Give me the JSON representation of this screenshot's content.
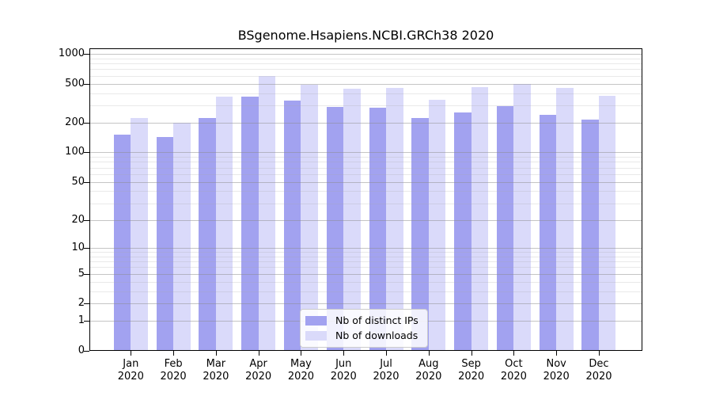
{
  "chart_data": {
    "type": "bar",
    "title": "BSgenome.Hsapiens.NCBI.GRCh38 2020",
    "categories": [
      "Jan",
      "Feb",
      "Mar",
      "Apr",
      "May",
      "Jun",
      "Jul",
      "Aug",
      "Sep",
      "Oct",
      "Nov",
      "Dec"
    ],
    "category_year": "2020",
    "series": [
      {
        "name": "Nb of distinct IPs",
        "color": "#a2a2f0",
        "values": [
          150,
          140,
          218,
          362,
          330,
          285,
          280,
          220,
          250,
          292,
          237,
          212
        ]
      },
      {
        "name": "Nb of downloads",
        "color": "#dadafa",
        "values": [
          220,
          198,
          363,
          580,
          480,
          433,
          447,
          338,
          455,
          483,
          446,
          366
        ]
      }
    ],
    "y_axis": {
      "scale": "log1p",
      "major_ticks": [
        0,
        1,
        2,
        5,
        10,
        20,
        50,
        100,
        200,
        500,
        1000
      ],
      "minor_ticks": [
        3,
        4,
        6,
        7,
        8,
        9,
        30,
        40,
        60,
        70,
        80,
        90,
        300,
        400,
        600,
        700,
        800,
        900
      ],
      "range_top": 1140
    },
    "xlabel": "",
    "ylabel": "",
    "grid": true,
    "legend_position": "bottom-center-inside"
  },
  "colors": {
    "bar_distinct_ips": "#a2a2f0",
    "bar_downloads": "#dadafa",
    "axis": "#000000",
    "grid_major": "#8c8c8c",
    "grid_minor": "#a8a8a8",
    "legend_border": "#cccccc",
    "text": "#000000"
  }
}
